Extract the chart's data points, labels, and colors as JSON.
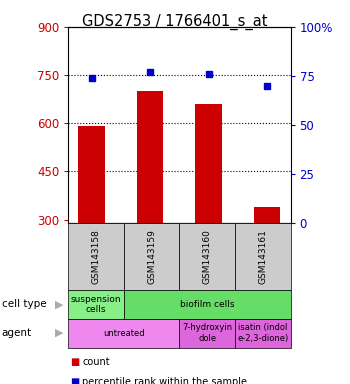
{
  "title": "GDS2753 / 1766401_s_at",
  "samples": [
    "GSM143158",
    "GSM143159",
    "GSM143160",
    "GSM143161"
  ],
  "counts": [
    590,
    700,
    660,
    340
  ],
  "percentile_ranks": [
    74,
    77,
    76,
    70
  ],
  "ylim_left": [
    290,
    900
  ],
  "ylim_right": [
    0,
    100
  ],
  "yticks_left": [
    300,
    450,
    600,
    750,
    900
  ],
  "yticks_right": [
    0,
    25,
    50,
    75,
    100
  ],
  "ytick_labels_right": [
    "0",
    "25",
    "50",
    "75",
    "100%"
  ],
  "bar_color": "#cc0000",
  "dot_color": "#0000cc",
  "cell_type_row": [
    {
      "label": "suspension\ncells",
      "color": "#88ee88",
      "span": 1
    },
    {
      "label": "biofilm cells",
      "color": "#66dd66",
      "span": 3
    }
  ],
  "agent_row": [
    {
      "label": "untreated",
      "color": "#ee88ee",
      "span": 2
    },
    {
      "label": "7-hydroxyin\ndole",
      "color": "#dd66dd",
      "span": 1
    },
    {
      "label": "isatin (indol\ne-2,3-dione)",
      "color": "#dd66dd",
      "span": 1
    }
  ],
  "background_color": "#ffffff",
  "left_label_color": "#cc0000",
  "right_label_color": "#0000cc",
  "sample_bg_color": "#cccccc"
}
